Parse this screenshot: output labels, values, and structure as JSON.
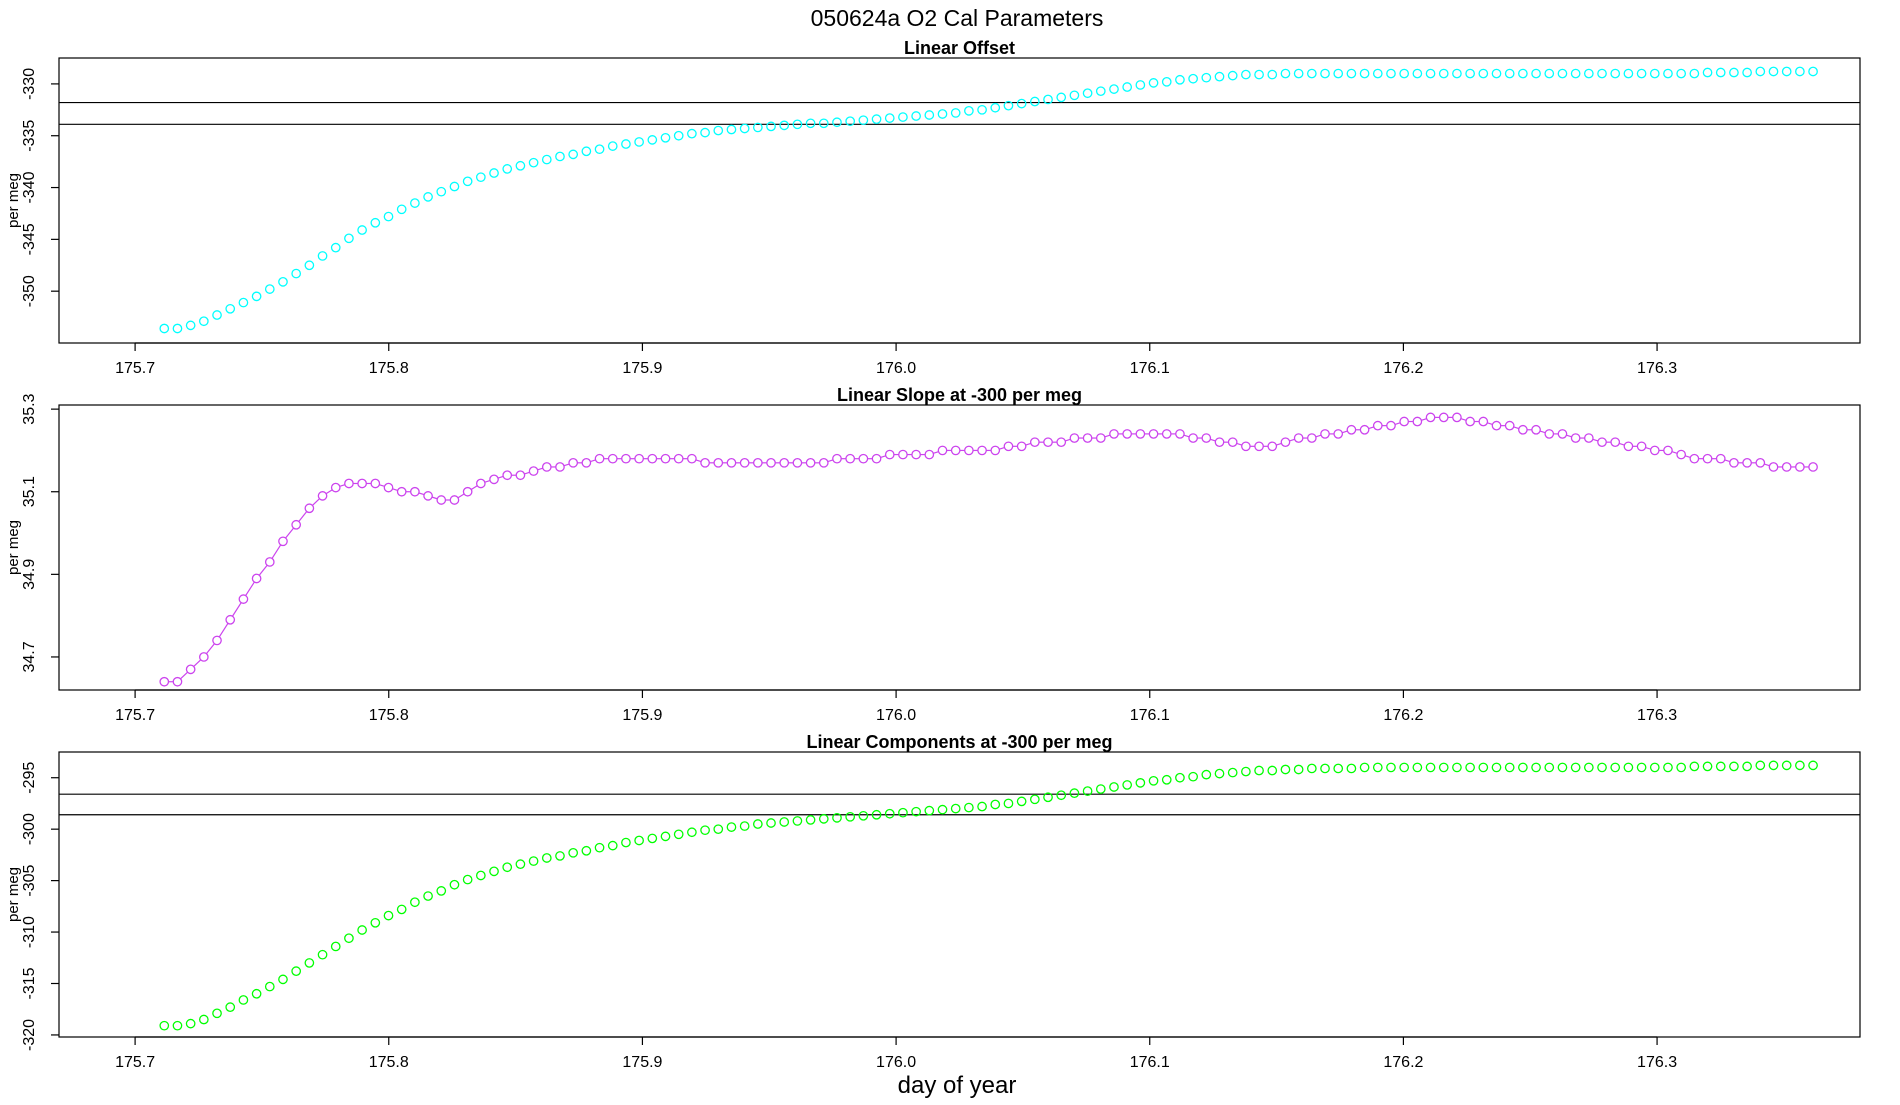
{
  "figure": {
    "title": "050624a   O2 Cal Parameters",
    "xlabel": "day of year"
  },
  "chart_data": [
    {
      "type": "scatter",
      "title": "Linear Offset",
      "ylabel": "per meg",
      "xlabel": "day of year",
      "xlim": [
        175.67,
        176.38
      ],
      "ylim": [
        -355,
        -327.5
      ],
      "xticks": [
        175.7,
        175.8,
        175.9,
        176.0,
        176.1,
        176.2,
        176.3
      ],
      "yticks": [
        -350,
        -345,
        -340,
        -335,
        -330
      ],
      "grid": false,
      "color": "#00ffff",
      "connect_points": false,
      "reference_lines": [
        -331.8,
        -333.9
      ],
      "series": [
        {
          "x": [
            175.7115,
            175.7167,
            175.7219,
            175.7271,
            175.7323,
            175.7375,
            175.7427,
            175.7479,
            175.7531,
            175.7583,
            175.7635,
            175.7687,
            175.7739,
            175.7791,
            175.7843,
            175.7895,
            175.7947,
            175.7999,
            175.8051,
            175.8103,
            175.8155,
            175.8207,
            175.8259,
            175.8311,
            175.8363,
            175.8415,
            175.8467,
            175.8519,
            175.8571,
            175.8623,
            175.8675,
            175.8727,
            175.8779,
            175.8831,
            175.8883,
            175.8935,
            175.8987,
            175.9039,
            175.9091,
            175.9143,
            175.9195,
            175.9247,
            175.9299,
            175.9351,
            175.9403,
            175.9455,
            175.9507,
            175.9559,
            175.9611,
            175.9663,
            175.9715,
            175.9767,
            175.9819,
            175.9871,
            175.9923,
            175.9975,
            176.0027,
            176.0079,
            176.0131,
            176.0183,
            176.0235,
            176.0287,
            176.0339,
            176.0391,
            176.0443,
            176.0495,
            176.0547,
            176.0599,
            176.0651,
            176.0703,
            176.0755,
            176.0807,
            176.0859,
            176.0911,
            176.0963,
            176.1015,
            176.1067,
            176.1119,
            176.1171,
            176.1223,
            176.1275,
            176.1327,
            176.1379,
            176.1431,
            176.1483,
            176.1535,
            176.1587,
            176.1639,
            176.1691,
            176.1743,
            176.1795,
            176.1847,
            176.1899,
            176.1951,
            176.2003,
            176.2055,
            176.2107,
            176.2159,
            176.2211,
            176.2263,
            176.2315,
            176.2367,
            176.2419,
            176.2471,
            176.2523,
            176.2575,
            176.2627,
            176.2679,
            176.2731,
            176.2783,
            176.2835,
            176.2887,
            176.2939,
            176.2991,
            176.3043,
            176.3095,
            176.3147,
            176.3199,
            176.3251,
            176.3303,
            176.3355,
            176.3407,
            176.3459,
            176.3511,
            176.3563,
            176.3615
          ],
          "y": [
            -353.6,
            -353.6,
            -353.3,
            -352.9,
            -352.3,
            -351.7,
            -351.1,
            -350.5,
            -349.8,
            -349.1,
            -348.3,
            -347.5,
            -346.6,
            -345.8,
            -344.9,
            -344.1,
            -343.4,
            -342.8,
            -342.1,
            -341.5,
            -340.9,
            -340.4,
            -339.9,
            -339.4,
            -339.0,
            -338.6,
            -338.2,
            -337.9,
            -337.6,
            -337.3,
            -337.0,
            -336.8,
            -336.5,
            -336.3,
            -336.0,
            -335.8,
            -335.6,
            -335.4,
            -335.2,
            -335.0,
            -334.8,
            -334.7,
            -334.5,
            -334.4,
            -334.3,
            -334.2,
            -334.1,
            -334.0,
            -333.9,
            -333.8,
            -333.8,
            -333.7,
            -333.6,
            -333.5,
            -333.4,
            -333.3,
            -333.2,
            -333.1,
            -333.0,
            -332.9,
            -332.8,
            -332.6,
            -332.5,
            -332.3,
            -332.1,
            -331.9,
            -331.7,
            -331.5,
            -331.3,
            -331.1,
            -330.9,
            -330.7,
            -330.5,
            -330.3,
            -330.1,
            -329.9,
            -329.8,
            -329.6,
            -329.5,
            -329.4,
            -329.3,
            -329.2,
            -329.1,
            -329.1,
            -329.1,
            -329.0,
            -329.0,
            -329.0,
            -329.0,
            -329.0,
            -329.0,
            -329.0,
            -329.0,
            -329.0,
            -329.0,
            -329.0,
            -329.0,
            -329.0,
            -329.0,
            -329.0,
            -329.0,
            -329.0,
            -329.0,
            -329.0,
            -329.0,
            -329.0,
            -329.0,
            -329.0,
            -329.0,
            -329.0,
            -329.0,
            -329.0,
            -329.0,
            -329.0,
            -329.0,
            -329.0,
            -329.0,
            -328.9,
            -328.9,
            -328.9,
            -328.9,
            -328.8,
            -328.8,
            -328.8,
            -328.8,
            -328.8
          ]
        }
      ]
    },
    {
      "type": "scatter",
      "title": "Linear Slope at -300 per meg",
      "ylabel": "per meg",
      "xlabel": "day of year",
      "xlim": [
        175.67,
        176.38
      ],
      "ylim": [
        34.62,
        35.31
      ],
      "xticks": [
        175.7,
        175.8,
        175.9,
        176.0,
        176.1,
        176.2,
        176.3
      ],
      "yticks": [
        34.7,
        34.9,
        35.1,
        35.3
      ],
      "grid": false,
      "color": "#cc44ee",
      "connect_points": true,
      "reference_lines": [],
      "series": [
        {
          "x": [
            175.7115,
            175.7167,
            175.7219,
            175.7271,
            175.7323,
            175.7375,
            175.7427,
            175.7479,
            175.7531,
            175.7583,
            175.7635,
            175.7687,
            175.7739,
            175.7791,
            175.7843,
            175.7895,
            175.7947,
            175.7999,
            175.8051,
            175.8103,
            175.8155,
            175.8207,
            175.8259,
            175.8311,
            175.8363,
            175.8415,
            175.8467,
            175.8519,
            175.8571,
            175.8623,
            175.8675,
            175.8727,
            175.8779,
            175.8831,
            175.8883,
            175.8935,
            175.8987,
            175.9039,
            175.9091,
            175.9143,
            175.9195,
            175.9247,
            175.9299,
            175.9351,
            175.9403,
            175.9455,
            175.9507,
            175.9559,
            175.9611,
            175.9663,
            175.9715,
            175.9767,
            175.9819,
            175.9871,
            175.9923,
            175.9975,
            176.0027,
            176.0079,
            176.0131,
            176.0183,
            176.0235,
            176.0287,
            176.0339,
            176.0391,
            176.0443,
            176.0495,
            176.0547,
            176.0599,
            176.0651,
            176.0703,
            176.0755,
            176.0807,
            176.0859,
            176.0911,
            176.0963,
            176.1015,
            176.1067,
            176.1119,
            176.1171,
            176.1223,
            176.1275,
            176.1327,
            176.1379,
            176.1431,
            176.1483,
            176.1535,
            176.1587,
            176.1639,
            176.1691,
            176.1743,
            176.1795,
            176.1847,
            176.1899,
            176.1951,
            176.2003,
            176.2055,
            176.2107,
            176.2159,
            176.2211,
            176.2263,
            176.2315,
            176.2367,
            176.2419,
            176.2471,
            176.2523,
            176.2575,
            176.2627,
            176.2679,
            176.2731,
            176.2783,
            176.2835,
            176.2887,
            176.2939,
            176.2991,
            176.3043,
            176.3095,
            176.3147,
            176.3199,
            176.3251,
            176.3303,
            176.3355,
            176.3407,
            176.3459,
            176.3511,
            176.3563,
            176.3615
          ],
          "y": [
            34.64,
            34.64,
            34.67,
            34.7,
            34.74,
            34.79,
            34.84,
            34.89,
            34.93,
            34.98,
            35.02,
            35.06,
            35.09,
            35.11,
            35.12,
            35.12,
            35.12,
            35.11,
            35.1,
            35.1,
            35.09,
            35.08,
            35.08,
            35.1,
            35.12,
            35.13,
            35.14,
            35.14,
            35.15,
            35.16,
            35.16,
            35.17,
            35.17,
            35.18,
            35.18,
            35.18,
            35.18,
            35.18,
            35.18,
            35.18,
            35.18,
            35.17,
            35.17,
            35.17,
            35.17,
            35.17,
            35.17,
            35.17,
            35.17,
            35.17,
            35.17,
            35.18,
            35.18,
            35.18,
            35.18,
            35.19,
            35.19,
            35.19,
            35.19,
            35.2,
            35.2,
            35.2,
            35.2,
            35.2,
            35.21,
            35.21,
            35.22,
            35.22,
            35.22,
            35.23,
            35.23,
            35.23,
            35.24,
            35.24,
            35.24,
            35.24,
            35.24,
            35.24,
            35.23,
            35.23,
            35.22,
            35.22,
            35.21,
            35.21,
            35.21,
            35.22,
            35.23,
            35.23,
            35.24,
            35.24,
            35.25,
            35.25,
            35.26,
            35.26,
            35.27,
            35.27,
            35.28,
            35.28,
            35.28,
            35.27,
            35.27,
            35.26,
            35.26,
            35.25,
            35.25,
            35.24,
            35.24,
            35.23,
            35.23,
            35.22,
            35.22,
            35.21,
            35.21,
            35.2,
            35.2,
            35.19,
            35.18,
            35.18,
            35.18,
            35.17,
            35.17,
            35.17,
            35.16,
            35.16,
            35.16,
            35.16
          ]
        }
      ]
    },
    {
      "type": "scatter",
      "title": "Linear Components at -300 per meg",
      "ylabel": "per meg",
      "xlabel": "day of year",
      "xlim": [
        175.67,
        176.38
      ],
      "ylim": [
        -320.2,
        -292.5
      ],
      "xticks": [
        175.7,
        175.8,
        175.9,
        176.0,
        176.1,
        176.2,
        176.3
      ],
      "yticks": [
        -320,
        -315,
        -310,
        -305,
        -300,
        -295
      ],
      "grid": false,
      "color": "#00ff00",
      "connect_points": false,
      "reference_lines": [
        -296.6,
        -298.6
      ],
      "series": [
        {
          "x": [
            175.7115,
            175.7167,
            175.7219,
            175.7271,
            175.7323,
            175.7375,
            175.7427,
            175.7479,
            175.7531,
            175.7583,
            175.7635,
            175.7687,
            175.7739,
            175.7791,
            175.7843,
            175.7895,
            175.7947,
            175.7999,
            175.8051,
            175.8103,
            175.8155,
            175.8207,
            175.8259,
            175.8311,
            175.8363,
            175.8415,
            175.8467,
            175.8519,
            175.8571,
            175.8623,
            175.8675,
            175.8727,
            175.8779,
            175.8831,
            175.8883,
            175.8935,
            175.8987,
            175.9039,
            175.9091,
            175.9143,
            175.9195,
            175.9247,
            175.9299,
            175.9351,
            175.9403,
            175.9455,
            175.9507,
            175.9559,
            175.9611,
            175.9663,
            175.9715,
            175.9767,
            175.9819,
            175.9871,
            175.9923,
            175.9975,
            176.0027,
            176.0079,
            176.0131,
            176.0183,
            176.0235,
            176.0287,
            176.0339,
            176.0391,
            176.0443,
            176.0495,
            176.0547,
            176.0599,
            176.0651,
            176.0703,
            176.0755,
            176.0807,
            176.0859,
            176.0911,
            176.0963,
            176.1015,
            176.1067,
            176.1119,
            176.1171,
            176.1223,
            176.1275,
            176.1327,
            176.1379,
            176.1431,
            176.1483,
            176.1535,
            176.1587,
            176.1639,
            176.1691,
            176.1743,
            176.1795,
            176.1847,
            176.1899,
            176.1951,
            176.2003,
            176.2055,
            176.2107,
            176.2159,
            176.2211,
            176.2263,
            176.2315,
            176.2367,
            176.2419,
            176.2471,
            176.2523,
            176.2575,
            176.2627,
            176.2679,
            176.2731,
            176.2783,
            176.2835,
            176.2887,
            176.2939,
            176.2991,
            176.3043,
            176.3095,
            176.3147,
            176.3199,
            176.3251,
            176.3303,
            176.3355,
            176.3407,
            176.3459,
            176.3511,
            176.3563,
            176.3615
          ],
          "y": [
            -319.1,
            -319.1,
            -318.9,
            -318.5,
            -317.9,
            -317.3,
            -316.6,
            -316.0,
            -315.3,
            -314.6,
            -313.8,
            -313.0,
            -312.2,
            -311.4,
            -310.6,
            -309.8,
            -309.1,
            -308.4,
            -307.8,
            -307.1,
            -306.5,
            -306.0,
            -305.4,
            -304.9,
            -304.5,
            -304.1,
            -303.7,
            -303.4,
            -303.1,
            -302.8,
            -302.6,
            -302.3,
            -302.1,
            -301.8,
            -301.6,
            -301.3,
            -301.1,
            -300.9,
            -300.7,
            -300.5,
            -300.3,
            -300.1,
            -300.0,
            -299.8,
            -299.7,
            -299.5,
            -299.4,
            -299.3,
            -299.2,
            -299.1,
            -299.0,
            -298.9,
            -298.8,
            -298.7,
            -298.6,
            -298.5,
            -298.4,
            -298.3,
            -298.2,
            -298.1,
            -298.0,
            -297.9,
            -297.8,
            -297.6,
            -297.5,
            -297.3,
            -297.1,
            -296.9,
            -296.7,
            -296.5,
            -296.3,
            -296.1,
            -295.9,
            -295.7,
            -295.5,
            -295.3,
            -295.2,
            -295.0,
            -294.9,
            -294.7,
            -294.6,
            -294.5,
            -294.4,
            -294.3,
            -294.3,
            -294.2,
            -294.2,
            -294.1,
            -294.1,
            -294.1,
            -294.1,
            -294.0,
            -294.0,
            -294.0,
            -294.0,
            -294.0,
            -294.0,
            -294.0,
            -294.0,
            -294.0,
            -294.0,
            -294.0,
            -294.0,
            -294.0,
            -294.0,
            -294.0,
            -294.0,
            -294.0,
            -294.0,
            -294.0,
            -294.0,
            -294.0,
            -294.0,
            -294.0,
            -294.0,
            -294.0,
            -293.9,
            -293.9,
            -293.9,
            -293.9,
            -293.9,
            -293.8,
            -293.8,
            -293.8,
            -293.8,
            -293.8
          ]
        }
      ]
    }
  ]
}
